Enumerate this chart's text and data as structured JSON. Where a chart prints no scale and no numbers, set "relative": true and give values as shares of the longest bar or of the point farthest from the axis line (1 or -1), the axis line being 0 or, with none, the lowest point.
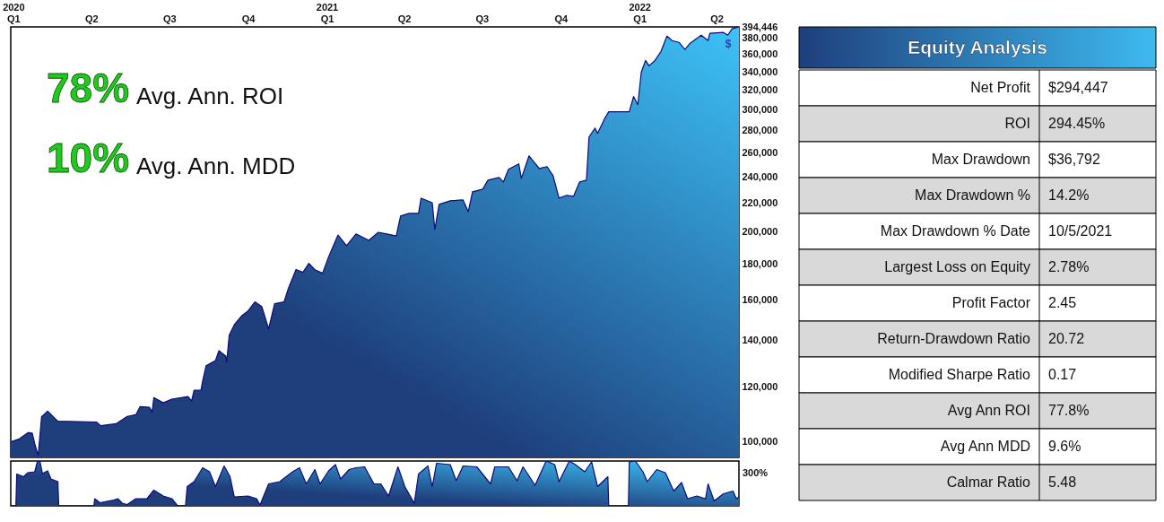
{
  "chart_data": [
    {
      "type": "area",
      "log": true,
      "xlim": [
        "2019-12-29",
        "2022-04-27"
      ],
      "xticks": [
        {
          "value": "2020-01-01",
          "label": "2020\nQ1"
        },
        {
          "value": "2020-04-01",
          "label": "Q2"
        },
        {
          "value": "2020-07-01",
          "label": "Q3"
        },
        {
          "value": "2020-10-01",
          "label": "Q4"
        },
        {
          "value": "2021-01-01",
          "label": "2021\nQ1"
        },
        {
          "value": "2021-04-01",
          "label": "Q2"
        },
        {
          "value": "2021-07-01",
          "label": "Q3"
        },
        {
          "value": "2021-10-01",
          "label": "Q4"
        },
        {
          "value": "2022-01-01",
          "label": "2022\nQ1"
        },
        {
          "value": "2022-04-01",
          "label": "Q2"
        }
      ],
      "ylim": [
        95000,
        394446
      ],
      "yticks": [
        {
          "value": 100000,
          "label": "100,000"
        },
        {
          "value": 120000,
          "label": "120,000"
        },
        {
          "value": 140000,
          "label": "140,000"
        },
        {
          "value": 160000,
          "label": "160,000"
        },
        {
          "value": 180000,
          "label": "180,000"
        },
        {
          "value": 200000,
          "label": "200,000"
        },
        {
          "value": 220000,
          "label": "220,000"
        },
        {
          "value": 240000,
          "label": "240,000"
        },
        {
          "value": 260000,
          "label": "260,000"
        },
        {
          "value": 280000,
          "label": "280,000"
        },
        {
          "value": 300000,
          "label": "300,000"
        },
        {
          "value": 320000,
          "label": "320,000"
        },
        {
          "value": 340000,
          "label": "340,000"
        },
        {
          "value": 360000,
          "label": "360,000"
        },
        {
          "value": 380000,
          "label": "380,000"
        },
        {
          "value": 394446,
          "label": "394,446"
        }
      ],
      "annotations": [
        "78%",
        "Avg. Ann. ROI",
        "10%",
        "Avg. Ann. MDD",
        "$"
      ],
      "series": [
        {
          "color": "#1e3f7c",
          "x": [
            "2019-12-29",
            "2020-01-08",
            "2020-01-18",
            "2020-01-23",
            "2020-01-26",
            "2020-01-30",
            "2020-02-03",
            "2020-02-10",
            "2020-02-22",
            "2020-04-07",
            "2020-04-12",
            "2020-04-30",
            "2020-05-13",
            "2020-05-23",
            "2020-05-28",
            "2020-06-08",
            "2020-06-11",
            "2020-06-13",
            "2020-06-24",
            "2020-07-04",
            "2020-07-23",
            "2020-07-27",
            "2020-07-30",
            "2020-08-07",
            "2020-08-09",
            "2020-08-13",
            "2020-08-24",
            "2020-08-28",
            "2020-09-05",
            "2020-09-06",
            "2020-09-09",
            "2020-09-15",
            "2020-09-24",
            "2020-10-01",
            "2020-10-09",
            "2020-10-17",
            "2020-10-25",
            "2020-11-01",
            "2020-11-12",
            "2020-11-17",
            "2020-11-26",
            "2020-12-04",
            "2020-12-11",
            "2020-12-18",
            "2020-12-27",
            "2021-01-03",
            "2021-01-14",
            "2021-01-24",
            "2021-02-04",
            "2021-02-19",
            "2021-03-02",
            "2021-03-12",
            "2021-03-23",
            "2021-03-28",
            "2021-04-07",
            "2021-04-18",
            "2021-04-21",
            "2021-05-04",
            "2021-05-07",
            "2021-05-12",
            "2021-05-25",
            "2021-06-09",
            "2021-06-15",
            "2021-06-20",
            "2021-07-02",
            "2021-07-08",
            "2021-07-21",
            "2021-07-26",
            "2021-08-01",
            "2021-08-13",
            "2021-08-16",
            "2021-08-25",
            "2021-09-06",
            "2021-09-15",
            "2021-09-22",
            "2021-09-29",
            "2021-10-08",
            "2021-10-16",
            "2021-10-23",
            "2021-10-31",
            "2021-11-03",
            "2021-11-10",
            "2021-11-13",
            "2021-11-21",
            "2021-11-26",
            "2021-12-20",
            "2021-12-25",
            "2021-12-30",
            "2022-01-03",
            "2022-01-08",
            "2022-01-12",
            "2022-01-19",
            "2022-01-26",
            "2022-02-02",
            "2022-02-08",
            "2022-02-16",
            "2022-02-23",
            "2022-03-01",
            "2022-03-14",
            "2022-03-22",
            "2022-03-24",
            "2022-04-09",
            "2022-04-14",
            "2022-04-19",
            "2022-04-27"
          ],
          "values": [
            100000,
            101000,
            103100,
            103000,
            99400,
            95600,
            108700,
            110700,
            107100,
            106800,
            105500,
            106200,
            108800,
            109400,
            112400,
            112100,
            110400,
            115800,
            113800,
            115200,
            116200,
            114500,
            118600,
            118600,
            122300,
            128600,
            130900,
            135200,
            132800,
            130100,
            142300,
            147400,
            151900,
            154200,
            158900,
            156500,
            145300,
            157900,
            158900,
            166100,
            176800,
            175200,
            180500,
            176700,
            174700,
            184400,
            198200,
            191300,
            198900,
            194700,
            200000,
            198900,
            197600,
            211000,
            212900,
            212900,
            223900,
            220600,
            201800,
            219300,
            222000,
            222600,
            214100,
            228600,
            230700,
            237600,
            239700,
            236200,
            246300,
            250800,
            239000,
            257500,
            247000,
            248500,
            241200,
            223900,
            226000,
            225300,
            236200,
            237600,
            274100,
            282300,
            277400,
            290900,
            297900,
            297900,
            313400,
            305000,
            339600,
            353000,
            346800,
            353000,
            363800,
            382600,
            377000,
            374800,
            366000,
            373700,
            383800,
            377000,
            386200,
            387300,
            383800,
            391900,
            394446
          ]
        }
      ]
    },
    {
      "type": "area",
      "relative": true,
      "xlim": [
        "2019-12-29",
        "2022-04-27"
      ],
      "annotations": [
        "300%"
      ],
      "series": [
        {
          "color": "#1e3f7c",
          "x": [
            "2019-12-29",
            "2020-01-04",
            "2020-01-05",
            "2020-01-13",
            "2020-01-18",
            "2020-01-26",
            "2020-01-29",
            "2020-02-01",
            "2020-02-04",
            "2020-02-10",
            "2020-02-14",
            "2020-02-22",
            "2020-02-23",
            "2020-04-04",
            "2020-04-05",
            "2020-04-11",
            "2020-04-27",
            "2020-05-02",
            "2020-05-07",
            "2020-05-13",
            "2020-05-23",
            "2020-06-05",
            "2020-06-13",
            "2020-06-24",
            "2020-07-04",
            "2020-07-10",
            "2020-07-12",
            "2020-07-20",
            "2020-07-22",
            "2020-07-30",
            "2020-08-09",
            "2020-08-17",
            "2020-08-24",
            "2020-09-03",
            "2020-09-10",
            "2020-09-15",
            "2020-10-01",
            "2020-10-11",
            "2020-10-15",
            "2020-10-25",
            "2020-11-07",
            "2020-11-22",
            "2020-11-30",
            "2020-12-08",
            "2020-12-18",
            "2020-12-24",
            "2021-01-03",
            "2021-01-11",
            "2021-01-17",
            "2021-01-27",
            "2021-02-04",
            "2021-02-14",
            "2021-02-25",
            "2021-03-05",
            "2021-03-14",
            "2021-03-25",
            "2021-04-02",
            "2021-04-13",
            "2021-04-18",
            "2021-04-29",
            "2021-05-04",
            "2021-05-09",
            "2021-05-25",
            "2021-06-01",
            "2021-06-09",
            "2021-06-25",
            "2021-07-11",
            "2021-07-16",
            "2021-08-01",
            "2021-08-11",
            "2021-08-18",
            "2021-09-01",
            "2021-09-14",
            "2021-09-24",
            "2021-09-29",
            "2021-10-11",
            "2021-10-18",
            "2021-10-29",
            "2021-11-06",
            "2021-11-13",
            "2021-11-25",
            "2021-11-26",
            "2021-12-19",
            "2021-12-20",
            "2021-12-27",
            "2022-01-05",
            "2022-01-10",
            "2022-01-21",
            "2022-01-31",
            "2022-02-10",
            "2022-02-19",
            "2022-02-26",
            "2022-03-09",
            "2022-03-19",
            "2022-03-22",
            "2022-03-29",
            "2022-04-09",
            "2022-04-20",
            "2022-04-24",
            "2022-04-27"
          ],
          "values": [
            0,
            0,
            0.71,
            0.65,
            0.74,
            0.76,
            0.98,
            1,
            0.72,
            0.78,
            0.6,
            0.54,
            0,
            0,
            0.16,
            0.07,
            0.13,
            0.16,
            0.06,
            0.03,
            0.16,
            0.16,
            0.35,
            0.22,
            0.16,
            0.02,
            0,
            0,
            0.43,
            0.54,
            0.85,
            0.76,
            0.43,
            0.89,
            0.65,
            0.2,
            0.22,
            0.16,
            0.02,
            0.49,
            0.54,
            0.76,
            0.85,
            0.49,
            0.81,
            0.49,
            0.78,
            0.92,
            0.6,
            0.81,
            0.85,
            0.87,
            0.49,
            0.49,
            0.22,
            0.87,
            0.43,
            0.06,
            0.71,
            0.89,
            0.43,
            0.95,
            0.92,
            0.56,
            0.89,
            0.87,
            0.49,
            0.87,
            0.87,
            0.56,
            0.87,
            0.46,
            1,
            0.92,
            0.54,
            1,
            0.92,
            0.76,
            0.98,
            0.43,
            0.65,
            0,
            0,
            0.98,
            1,
            0.76,
            0.54,
            0.81,
            0.74,
            0.33,
            0.52,
            0.16,
            0.22,
            0.16,
            0.49,
            0.11,
            0.27,
            0.33,
            0.16,
            0.2
          ]
        }
      ]
    },
    {
      "type": "other",
      "title": "Equity Analysis",
      "categories": [
        "Net Profit",
        "ROI",
        "Max Drawdown",
        "Max Drawdown %",
        "Max Drawdown % Date",
        "Largest Loss on Equity",
        "Profit Factor",
        "Return-Drawdown Ratio",
        "Modified Sharpe Ratio",
        "Avg Ann ROI",
        "Avg Ann MDD",
        "Calmar Ratio"
      ],
      "value_labels": [
        "$294,447",
        "294.45%",
        "$36,792",
        "14.2%",
        "10/5/2021",
        "2.78%",
        "2.45",
        "20.72",
        "0.17",
        "77.8%",
        "9.6%",
        "5.48"
      ]
    }
  ]
}
